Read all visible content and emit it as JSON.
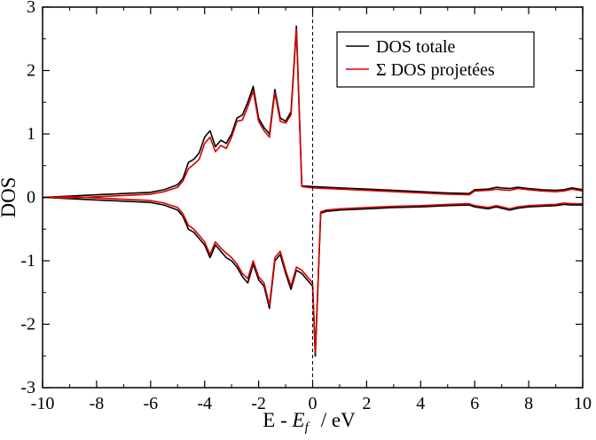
{
  "chart_data": {
    "type": "line",
    "title": "",
    "xlabel": "E - E_f  /  eV",
    "xlabel_parts": {
      "prefix": "E - ",
      "italic": "E",
      "subscript": "f",
      "suffix": "/  eV"
    },
    "ylabel": "DOS",
    "xlim": [
      -10,
      10
    ],
    "ylim": [
      -3,
      3
    ],
    "x_ticks": [
      -10,
      -8,
      -6,
      -4,
      -2,
      0,
      2,
      4,
      6,
      8,
      10
    ],
    "y_ticks": [
      -3,
      -2,
      -1,
      0,
      1,
      2,
      3
    ],
    "x_tick_labels": [
      "-10",
      "-8",
      "-6",
      "-4",
      "-2",
      "0",
      "2",
      "4",
      "6",
      "8",
      "10"
    ],
    "y_tick_labels": [
      "-3",
      "-2",
      "-1",
      "0",
      "1",
      "2",
      "3"
    ],
    "fermi_level_x": 0,
    "legend_position": "top-right",
    "series": [
      {
        "name": "DOS totale",
        "color": "#000000",
        "spin_up": {
          "x": [
            -10,
            -9,
            -8,
            -7,
            -6,
            -5.5,
            -5,
            -4.8,
            -4.6,
            -4.4,
            -4.2,
            -4.0,
            -3.8,
            -3.6,
            -3.4,
            -3.2,
            -3.0,
            -2.8,
            -2.6,
            -2.4,
            -2.2,
            -2.0,
            -1.8,
            -1.6,
            -1.4,
            -1.2,
            -1.0,
            -0.8,
            -0.6,
            -0.4,
            0.0,
            1,
            2,
            3,
            4,
            5,
            5.8,
            6.0,
            6.5,
            6.8,
            7.0,
            7.3,
            7.6,
            8,
            8.5,
            9,
            9.3,
            9.6,
            10
          ],
          "y": [
            0.0,
            0.02,
            0.04,
            0.06,
            0.08,
            0.12,
            0.2,
            0.3,
            0.55,
            0.6,
            0.7,
            0.95,
            1.05,
            0.8,
            0.9,
            0.85,
            1.0,
            1.25,
            1.3,
            1.5,
            1.75,
            1.25,
            1.1,
            1.0,
            1.7,
            1.25,
            1.2,
            1.35,
            2.7,
            0.18,
            0.17,
            0.15,
            0.13,
            0.11,
            0.09,
            0.07,
            0.06,
            0.12,
            0.13,
            0.16,
            0.15,
            0.14,
            0.16,
            0.14,
            0.12,
            0.11,
            0.12,
            0.15,
            0.12
          ]
        },
        "spin_down": {
          "x": [
            -10,
            -9,
            -8,
            -7,
            -6,
            -5.5,
            -5,
            -4.8,
            -4.6,
            -4.4,
            -4.2,
            -4.0,
            -3.8,
            -3.6,
            -3.4,
            -3.2,
            -3.0,
            -2.8,
            -2.6,
            -2.4,
            -2.2,
            -2.0,
            -1.8,
            -1.6,
            -1.4,
            -1.2,
            -1.0,
            -0.8,
            -0.6,
            -0.4,
            0.0,
            0.1,
            0.3,
            0.5,
            1,
            2,
            3,
            4,
            5,
            5.8,
            6.0,
            6.5,
            6.8,
            7.0,
            7.3,
            7.6,
            8,
            8.5,
            9,
            9.3,
            9.6,
            10
          ],
          "y": [
            0.0,
            -0.02,
            -0.04,
            -0.06,
            -0.08,
            -0.12,
            -0.2,
            -0.3,
            -0.5,
            -0.55,
            -0.65,
            -0.75,
            -0.95,
            -0.75,
            -0.85,
            -0.95,
            -1.0,
            -1.1,
            -1.25,
            -1.35,
            -1.05,
            -1.3,
            -1.4,
            -1.75,
            -1.0,
            -0.9,
            -1.2,
            -1.45,
            -1.15,
            -1.2,
            -1.4,
            -2.5,
            -0.25,
            -0.22,
            -0.2,
            -0.18,
            -0.16,
            -0.15,
            -0.13,
            -0.12,
            -0.15,
            -0.18,
            -0.15,
            -0.17,
            -0.2,
            -0.17,
            -0.15,
            -0.14,
            -0.13,
            -0.11,
            -0.12,
            -0.12
          ]
        }
      },
      {
        "name": "Σ DOS projetées",
        "color": "#d40000",
        "spin_up": {
          "x": [
            -10,
            -9,
            -8,
            -7,
            -6,
            -5.5,
            -5,
            -4.8,
            -4.6,
            -4.4,
            -4.2,
            -4.0,
            -3.8,
            -3.6,
            -3.4,
            -3.2,
            -3.0,
            -2.8,
            -2.6,
            -2.4,
            -2.2,
            -2.0,
            -1.8,
            -1.6,
            -1.4,
            -1.2,
            -1.0,
            -0.8,
            -0.6,
            -0.4,
            0.0,
            1,
            2,
            3,
            4,
            5,
            5.8,
            6.0,
            6.5,
            6.8,
            7.0,
            7.3,
            7.6,
            8,
            8.5,
            9,
            9.3,
            9.6,
            10
          ],
          "y": [
            0.0,
            -0.01,
            0.01,
            0.03,
            0.05,
            0.09,
            0.16,
            0.26,
            0.45,
            0.52,
            0.6,
            0.85,
            0.95,
            0.72,
            0.82,
            0.77,
            0.95,
            1.2,
            1.22,
            1.43,
            1.68,
            1.2,
            1.05,
            0.95,
            1.65,
            1.2,
            1.17,
            1.3,
            2.65,
            0.17,
            0.15,
            0.13,
            0.11,
            0.09,
            0.07,
            0.05,
            0.04,
            0.1,
            0.11,
            0.13,
            0.12,
            0.11,
            0.14,
            0.12,
            0.1,
            0.09,
            0.1,
            0.13,
            0.1
          ]
        },
        "spin_down": {
          "x": [
            -10,
            -9,
            -8,
            -7,
            -6,
            -5.5,
            -5,
            -4.8,
            -4.6,
            -4.4,
            -4.2,
            -4.0,
            -3.8,
            -3.6,
            -3.4,
            -3.2,
            -3.0,
            -2.8,
            -2.6,
            -2.4,
            -2.2,
            -2.0,
            -1.8,
            -1.6,
            -1.4,
            -1.2,
            -1.0,
            -0.8,
            -0.6,
            -0.4,
            0.0,
            0.1,
            0.3,
            0.5,
            1,
            2,
            3,
            4,
            5,
            5.8,
            6.0,
            6.5,
            6.8,
            7.0,
            7.3,
            7.6,
            8,
            8.5,
            9,
            9.3,
            9.6,
            10
          ],
          "y": [
            0.0,
            0.01,
            -0.01,
            -0.03,
            -0.05,
            -0.09,
            -0.16,
            -0.26,
            -0.44,
            -0.5,
            -0.6,
            -0.7,
            -0.9,
            -0.7,
            -0.8,
            -0.88,
            -0.95,
            -1.05,
            -1.2,
            -1.28,
            -1.0,
            -1.25,
            -1.35,
            -1.7,
            -0.95,
            -0.85,
            -1.15,
            -1.4,
            -1.1,
            -1.15,
            -1.35,
            -2.45,
            -0.23,
            -0.2,
            -0.18,
            -0.16,
            -0.14,
            -0.13,
            -0.11,
            -0.1,
            -0.13,
            -0.16,
            -0.13,
            -0.15,
            -0.18,
            -0.15,
            -0.13,
            -0.12,
            -0.11,
            -0.09,
            -0.1,
            -0.1
          ]
        }
      }
    ]
  }
}
